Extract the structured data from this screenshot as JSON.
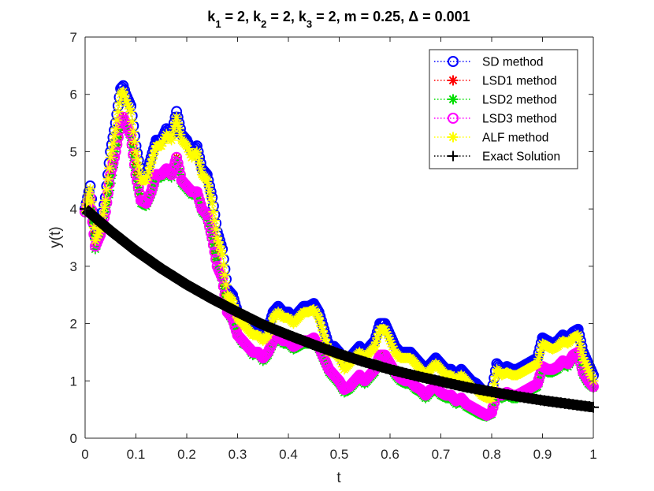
{
  "chart_data": {
    "type": "line",
    "title": "k₁ = 2, k₂ = 2, k₃ = 2, m = 0.25, Δ = 0.001",
    "title_parts": [
      {
        "text": "k",
        "sub": false
      },
      {
        "text": "1",
        "sub": true
      },
      {
        "text": " = 2, k",
        "sub": false
      },
      {
        "text": "2",
        "sub": true
      },
      {
        "text": " = 2, k",
        "sub": false
      },
      {
        "text": "3",
        "sub": true
      },
      {
        "text": " = 2, m = 0.25, Δ = 0.001",
        "sub": false
      }
    ],
    "xlabel": "t",
    "ylabel": "y(t)",
    "xlim": [
      0,
      1
    ],
    "ylim": [
      0,
      7
    ],
    "xticks": [
      0,
      0.1,
      0.2,
      0.3,
      0.4,
      0.5,
      0.6,
      0.7,
      0.8,
      0.9,
      1
    ],
    "xtick_labels": [
      "0",
      "0.1",
      "0.2",
      "0.3",
      "0.4",
      "0.5",
      "0.6",
      "0.7",
      "0.8",
      "0.9",
      "1"
    ],
    "yticks": [
      0,
      1,
      2,
      3,
      4,
      5,
      6,
      7
    ],
    "ytick_labels": [
      "0",
      "1",
      "2",
      "3",
      "4",
      "5",
      "6",
      "7"
    ],
    "legend_position": "top-right",
    "series": [
      {
        "name": "SD method",
        "color": "#0000ff",
        "marker": "circle",
        "line": "dotted",
        "x": [
          0,
          0.01,
          0.02,
          0.03,
          0.04,
          0.05,
          0.06,
          0.07,
          0.075,
          0.08,
          0.09,
          0.1,
          0.11,
          0.12,
          0.13,
          0.14,
          0.15,
          0.16,
          0.17,
          0.18,
          0.19,
          0.2,
          0.21,
          0.22,
          0.23,
          0.24,
          0.25,
          0.26,
          0.27,
          0.28,
          0.29,
          0.3,
          0.31,
          0.32,
          0.33,
          0.34,
          0.35,
          0.36,
          0.37,
          0.38,
          0.39,
          0.4,
          0.41,
          0.42,
          0.43,
          0.44,
          0.45,
          0.46,
          0.47,
          0.48,
          0.49,
          0.5,
          0.51,
          0.52,
          0.53,
          0.54,
          0.55,
          0.56,
          0.57,
          0.58,
          0.59,
          0.6,
          0.61,
          0.62,
          0.63,
          0.64,
          0.65,
          0.66,
          0.67,
          0.68,
          0.69,
          0.7,
          0.71,
          0.72,
          0.73,
          0.74,
          0.75,
          0.76,
          0.77,
          0.78,
          0.79,
          0.8,
          0.81,
          0.82,
          0.83,
          0.84,
          0.85,
          0.86,
          0.87,
          0.88,
          0.89,
          0.9,
          0.91,
          0.92,
          0.93,
          0.94,
          0.95,
          0.96,
          0.97,
          0.98,
          0.99,
          1
        ],
        "values": [
          4.0,
          4.4,
          3.5,
          3.7,
          4.2,
          5.0,
          5.5,
          6.1,
          6.15,
          6.0,
          5.8,
          5.1,
          4.6,
          4.6,
          4.9,
          5.2,
          5.2,
          5.4,
          5.3,
          5.7,
          5.3,
          5.2,
          5.0,
          5.1,
          4.7,
          4.6,
          4.2,
          3.6,
          3.3,
          2.6,
          2.5,
          2.2,
          2.1,
          2.0,
          1.9,
          1.9,
          1.8,
          1.9,
          2.2,
          2.3,
          2.2,
          2.2,
          2.1,
          2.2,
          2.3,
          2.3,
          2.35,
          2.2,
          1.9,
          1.6,
          1.6,
          1.5,
          1.3,
          1.4,
          1.5,
          1.6,
          1.5,
          1.6,
          1.7,
          2.0,
          2.0,
          1.8,
          1.6,
          1.5,
          1.5,
          1.5,
          1.4,
          1.3,
          1.2,
          1.3,
          1.4,
          1.3,
          1.2,
          1.2,
          1.1,
          1.2,
          1.1,
          1.0,
          0.95,
          0.85,
          0.8,
          0.8,
          1.3,
          1.2,
          1.25,
          1.2,
          1.2,
          1.25,
          1.3,
          1.35,
          1.4,
          1.75,
          1.7,
          1.65,
          1.7,
          1.8,
          1.75,
          1.85,
          1.9,
          1.5,
          1.3,
          1.1
        ]
      },
      {
        "name": "LSD1 method",
        "color": "#ff0000",
        "marker": "star",
        "line": "dotted",
        "x": [
          0,
          0.01,
          0.02,
          0.03,
          0.04,
          0.05,
          0.06,
          0.07,
          0.075,
          0.08,
          0.09,
          0.1,
          0.11,
          0.12,
          0.13,
          0.14,
          0.15,
          0.16,
          0.17,
          0.18,
          0.19,
          0.2,
          0.21,
          0.22,
          0.23,
          0.24,
          0.25,
          0.26,
          0.27,
          0.28,
          0.29,
          0.3,
          0.31,
          0.32,
          0.33,
          0.34,
          0.35,
          0.36,
          0.37,
          0.38,
          0.39,
          0.4,
          0.41,
          0.42,
          0.43,
          0.44,
          0.45,
          0.46,
          0.47,
          0.48,
          0.49,
          0.5,
          0.51,
          0.52,
          0.53,
          0.54,
          0.55,
          0.56,
          0.57,
          0.58,
          0.59,
          0.6,
          0.61,
          0.62,
          0.63,
          0.64,
          0.65,
          0.66,
          0.67,
          0.68,
          0.69,
          0.7,
          0.71,
          0.72,
          0.73,
          0.74,
          0.75,
          0.76,
          0.77,
          0.78,
          0.79,
          0.8,
          0.81,
          0.82,
          0.83,
          0.84,
          0.85,
          0.86,
          0.87,
          0.88,
          0.89,
          0.9,
          0.91,
          0.92,
          0.93,
          0.94,
          0.95,
          0.96,
          0.97,
          0.98,
          0.99,
          1
        ],
        "values": [
          3.95,
          4.2,
          3.35,
          3.55,
          3.95,
          4.6,
          5.0,
          5.5,
          5.6,
          5.5,
          5.3,
          4.6,
          4.15,
          4.1,
          4.3,
          4.6,
          4.6,
          4.7,
          4.6,
          4.9,
          4.5,
          4.4,
          4.3,
          4.3,
          4.0,
          3.9,
          3.5,
          3.0,
          2.8,
          2.2,
          2.1,
          1.8,
          1.7,
          1.6,
          1.5,
          1.5,
          1.4,
          1.5,
          1.7,
          1.8,
          1.7,
          1.7,
          1.6,
          1.65,
          1.7,
          1.7,
          1.75,
          1.6,
          1.4,
          1.2,
          1.1,
          1.0,
          0.85,
          0.9,
          1.0,
          1.1,
          1.0,
          1.1,
          1.2,
          1.45,
          1.45,
          1.3,
          1.15,
          1.05,
          1.0,
          1.0,
          0.9,
          0.85,
          0.75,
          0.85,
          0.9,
          0.8,
          0.75,
          0.75,
          0.65,
          0.7,
          0.6,
          0.55,
          0.5,
          0.45,
          0.4,
          0.45,
          0.8,
          0.75,
          0.8,
          0.75,
          0.75,
          0.8,
          0.85,
          0.9,
          0.95,
          1.25,
          1.2,
          1.2,
          1.25,
          1.35,
          1.3,
          1.45,
          1.5,
          1.15,
          1.0,
          0.9
        ]
      },
      {
        "name": "LSD2 method",
        "color": "#00dd00",
        "marker": "star",
        "line": "dotted",
        "x": [
          0,
          0.01,
          0.02,
          0.03,
          0.04,
          0.05,
          0.06,
          0.07,
          0.075,
          0.08,
          0.09,
          0.1,
          0.11,
          0.12,
          0.13,
          0.14,
          0.15,
          0.16,
          0.17,
          0.18,
          0.19,
          0.2,
          0.21,
          0.22,
          0.23,
          0.24,
          0.25,
          0.26,
          0.27,
          0.28,
          0.29,
          0.3,
          0.31,
          0.32,
          0.33,
          0.34,
          0.35,
          0.36,
          0.37,
          0.38,
          0.39,
          0.4,
          0.41,
          0.42,
          0.43,
          0.44,
          0.45,
          0.46,
          0.47,
          0.48,
          0.49,
          0.5,
          0.51,
          0.52,
          0.53,
          0.54,
          0.55,
          0.56,
          0.57,
          0.58,
          0.59,
          0.6,
          0.61,
          0.62,
          0.63,
          0.64,
          0.65,
          0.66,
          0.67,
          0.68,
          0.69,
          0.7,
          0.71,
          0.72,
          0.73,
          0.74,
          0.75,
          0.76,
          0.77,
          0.78,
          0.79,
          0.8,
          0.81,
          0.82,
          0.83,
          0.84,
          0.85,
          0.86,
          0.87,
          0.88,
          0.89,
          0.9,
          0.91,
          0.92,
          0.93,
          0.94,
          0.95,
          0.96,
          0.97,
          0.98,
          0.99,
          1
        ],
        "values": [
          3.95,
          4.2,
          3.3,
          3.55,
          3.95,
          4.45,
          5.0,
          5.45,
          5.55,
          5.45,
          5.25,
          4.55,
          4.1,
          4.05,
          4.25,
          4.55,
          4.55,
          4.65,
          4.55,
          4.85,
          4.45,
          4.35,
          4.25,
          4.25,
          3.95,
          3.85,
          3.45,
          3.0,
          2.75,
          2.2,
          2.05,
          1.8,
          1.65,
          1.6,
          1.45,
          1.5,
          1.35,
          1.45,
          1.65,
          1.75,
          1.65,
          1.65,
          1.55,
          1.6,
          1.65,
          1.65,
          1.7,
          1.55,
          1.35,
          1.15,
          1.05,
          0.95,
          0.8,
          0.85,
          0.95,
          1.05,
          0.95,
          1.05,
          1.15,
          1.4,
          1.4,
          1.25,
          1.1,
          1.0,
          0.95,
          0.95,
          0.85,
          0.8,
          0.7,
          0.8,
          0.85,
          0.75,
          0.7,
          0.7,
          0.6,
          0.65,
          0.55,
          0.5,
          0.45,
          0.4,
          0.38,
          0.42,
          0.75,
          0.7,
          0.75,
          0.7,
          0.7,
          0.75,
          0.8,
          0.85,
          0.9,
          1.2,
          1.15,
          1.15,
          1.2,
          1.3,
          1.25,
          1.4,
          1.45,
          1.1,
          0.95,
          0.88
        ]
      },
      {
        "name": "LSD3 method",
        "color": "#ff00ff",
        "marker": "circle",
        "line": "dotted",
        "x": [
          0,
          0.01,
          0.02,
          0.03,
          0.04,
          0.05,
          0.06,
          0.07,
          0.075,
          0.08,
          0.09,
          0.1,
          0.11,
          0.12,
          0.13,
          0.14,
          0.15,
          0.16,
          0.17,
          0.18,
          0.19,
          0.2,
          0.21,
          0.22,
          0.23,
          0.24,
          0.25,
          0.26,
          0.27,
          0.28,
          0.29,
          0.3,
          0.31,
          0.32,
          0.33,
          0.34,
          0.35,
          0.36,
          0.37,
          0.38,
          0.39,
          0.4,
          0.41,
          0.42,
          0.43,
          0.44,
          0.45,
          0.46,
          0.47,
          0.48,
          0.49,
          0.5,
          0.51,
          0.52,
          0.53,
          0.54,
          0.55,
          0.56,
          0.57,
          0.58,
          0.59,
          0.6,
          0.61,
          0.62,
          0.63,
          0.64,
          0.65,
          0.66,
          0.67,
          0.68,
          0.69,
          0.7,
          0.71,
          0.72,
          0.73,
          0.74,
          0.75,
          0.76,
          0.77,
          0.78,
          0.79,
          0.8,
          0.81,
          0.82,
          0.83,
          0.84,
          0.85,
          0.86,
          0.87,
          0.88,
          0.89,
          0.9,
          0.91,
          0.92,
          0.93,
          0.94,
          0.95,
          0.96,
          0.97,
          0.98,
          0.99,
          1
        ],
        "values": [
          3.95,
          4.2,
          3.35,
          3.55,
          3.95,
          4.6,
          5.0,
          5.5,
          5.6,
          5.5,
          5.3,
          4.6,
          4.15,
          4.1,
          4.3,
          4.6,
          4.6,
          4.7,
          4.6,
          4.9,
          4.5,
          4.4,
          4.3,
          4.3,
          4.0,
          3.9,
          3.5,
          3.0,
          2.8,
          2.2,
          2.1,
          1.8,
          1.7,
          1.6,
          1.5,
          1.5,
          1.4,
          1.5,
          1.7,
          1.8,
          1.7,
          1.7,
          1.6,
          1.65,
          1.7,
          1.7,
          1.75,
          1.6,
          1.4,
          1.2,
          1.1,
          1.0,
          0.85,
          0.9,
          1.0,
          1.1,
          1.0,
          1.1,
          1.2,
          1.45,
          1.45,
          1.3,
          1.15,
          1.05,
          1.0,
          1.0,
          0.9,
          0.85,
          0.75,
          0.85,
          0.9,
          0.8,
          0.75,
          0.75,
          0.65,
          0.7,
          0.6,
          0.55,
          0.5,
          0.45,
          0.4,
          0.45,
          0.8,
          0.75,
          0.8,
          0.75,
          0.75,
          0.8,
          0.85,
          0.9,
          0.95,
          1.25,
          1.2,
          1.2,
          1.25,
          1.35,
          1.3,
          1.45,
          1.5,
          1.15,
          1.0,
          0.9
        ]
      },
      {
        "name": "ALF method",
        "color": "#ffff00",
        "marker": "star",
        "line": "dotted",
        "x": [
          0,
          0.01,
          0.02,
          0.03,
          0.04,
          0.05,
          0.06,
          0.07,
          0.075,
          0.08,
          0.09,
          0.1,
          0.11,
          0.12,
          0.13,
          0.14,
          0.15,
          0.16,
          0.17,
          0.18,
          0.19,
          0.2,
          0.21,
          0.22,
          0.23,
          0.24,
          0.25,
          0.26,
          0.27,
          0.28,
          0.29,
          0.3,
          0.31,
          0.32,
          0.33,
          0.34,
          0.35,
          0.36,
          0.37,
          0.38,
          0.39,
          0.4,
          0.41,
          0.42,
          0.43,
          0.44,
          0.45,
          0.46,
          0.47,
          0.48,
          0.49,
          0.5,
          0.51,
          0.52,
          0.53,
          0.54,
          0.55,
          0.56,
          0.57,
          0.58,
          0.59,
          0.6,
          0.61,
          0.62,
          0.63,
          0.64,
          0.65,
          0.66,
          0.67,
          0.68,
          0.69,
          0.7,
          0.71,
          0.72,
          0.73,
          0.74,
          0.75,
          0.76,
          0.77,
          0.78,
          0.79,
          0.8,
          0.81,
          0.82,
          0.83,
          0.84,
          0.85,
          0.86,
          0.87,
          0.88,
          0.89,
          0.9,
          0.91,
          0.92,
          0.93,
          0.94,
          0.95,
          0.96,
          0.97,
          0.98,
          0.99,
          1
        ],
        "values": [
          4.0,
          4.35,
          3.45,
          3.65,
          4.15,
          4.9,
          5.4,
          6.0,
          6.05,
          5.9,
          5.7,
          5.0,
          4.5,
          4.5,
          4.8,
          5.1,
          5.1,
          5.3,
          5.2,
          5.6,
          5.2,
          5.1,
          4.9,
          5.0,
          4.6,
          4.5,
          4.1,
          3.5,
          3.2,
          2.5,
          2.4,
          2.1,
          2.0,
          1.9,
          1.8,
          1.8,
          1.7,
          1.8,
          2.1,
          2.2,
          2.1,
          2.1,
          2.0,
          2.1,
          2.2,
          2.2,
          2.25,
          2.1,
          1.8,
          1.5,
          1.5,
          1.4,
          1.2,
          1.3,
          1.4,
          1.5,
          1.4,
          1.5,
          1.6,
          1.9,
          1.9,
          1.7,
          1.5,
          1.4,
          1.4,
          1.4,
          1.3,
          1.2,
          1.1,
          1.2,
          1.3,
          1.2,
          1.1,
          1.1,
          1.0,
          1.1,
          1.0,
          0.9,
          0.85,
          0.75,
          0.7,
          0.7,
          1.2,
          1.1,
          1.15,
          1.1,
          1.1,
          1.15,
          1.2,
          1.25,
          1.3,
          1.65,
          1.6,
          1.55,
          1.6,
          1.7,
          1.65,
          1.75,
          1.8,
          1.4,
          1.2,
          1.0
        ]
      },
      {
        "name": "Exact Solution",
        "color": "#000000",
        "marker": "plus",
        "line": "dotted",
        "x": [
          0,
          0.05,
          0.1,
          0.15,
          0.2,
          0.25,
          0.3,
          0.35,
          0.4,
          0.45,
          0.5,
          0.55,
          0.6,
          0.65,
          0.7,
          0.75,
          0.8,
          0.85,
          0.9,
          0.95,
          1
        ],
        "values": [
          4.0,
          3.62,
          3.27,
          2.96,
          2.68,
          2.43,
          2.2,
          1.98,
          1.8,
          1.63,
          1.47,
          1.33,
          1.2,
          1.09,
          0.99,
          0.89,
          0.81,
          0.73,
          0.66,
          0.6,
          0.54
        ]
      }
    ]
  }
}
